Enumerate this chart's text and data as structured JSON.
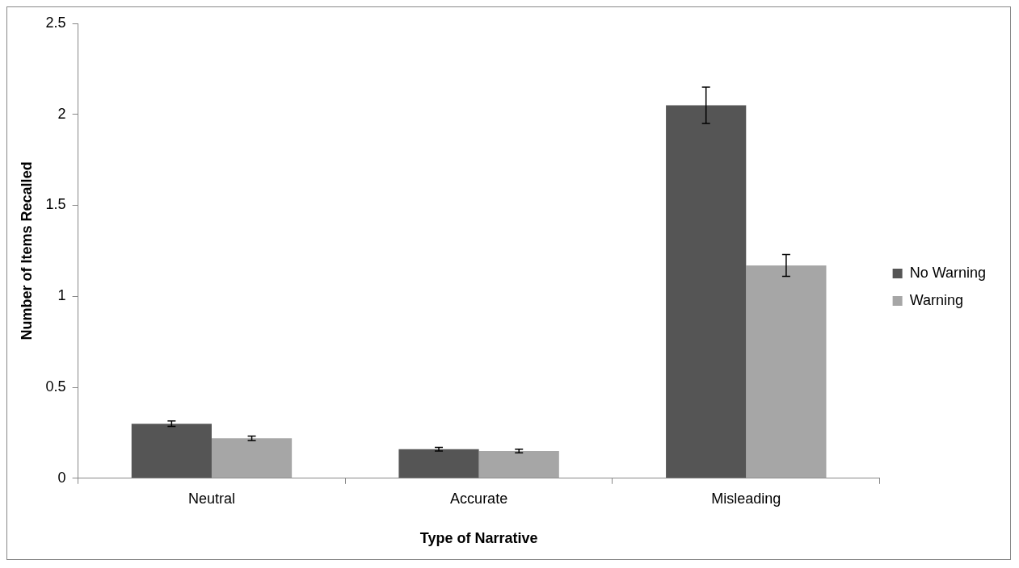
{
  "chart_data": {
    "type": "bar",
    "xlabel": "Type of Narrative",
    "ylabel": "Number of Items Recalled",
    "categories": [
      "Neutral",
      "Accurate",
      "Misleading"
    ],
    "series": [
      {
        "name": "No Warning",
        "color": "#555555",
        "values": [
          0.3,
          0.16,
          2.05
        ],
        "errors": [
          0.015,
          0.01,
          0.1
        ]
      },
      {
        "name": "Warning",
        "color": "#a6a6a6",
        "values": [
          0.22,
          0.15,
          1.17
        ],
        "errors": [
          0.012,
          0.01,
          0.06
        ]
      }
    ],
    "ylim": [
      0,
      2.5
    ],
    "yticks": [
      0,
      0.5,
      1,
      1.5,
      2,
      2.5
    ],
    "grid": false,
    "legend": "right"
  }
}
